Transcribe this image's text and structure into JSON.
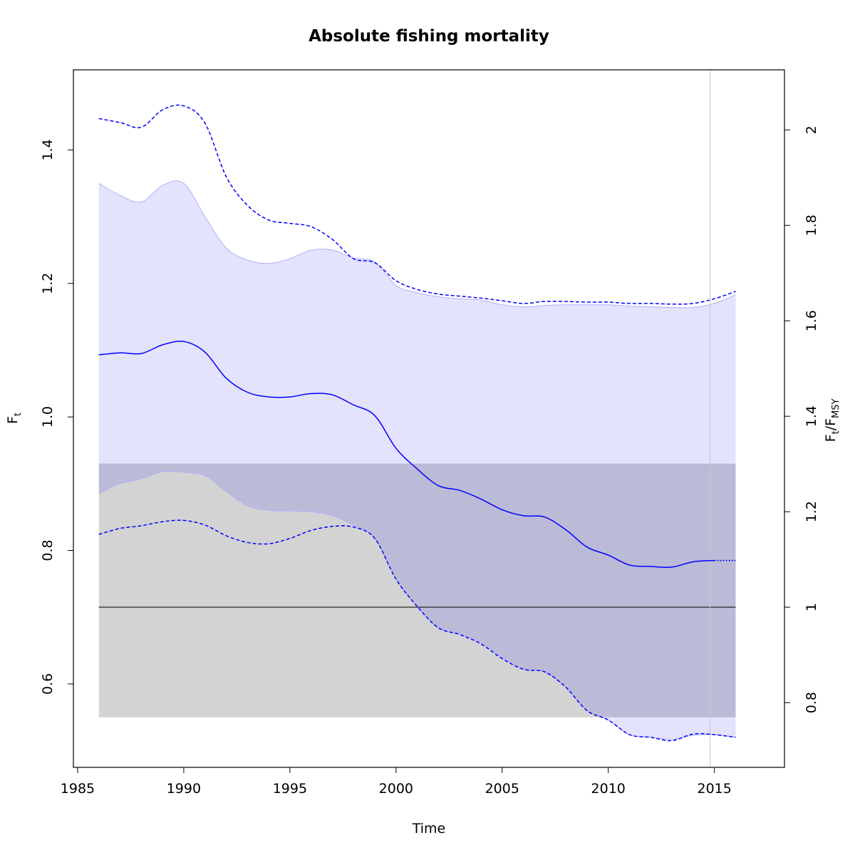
{
  "chart_data": {
    "type": "line",
    "title": "Absolute fishing mortality",
    "xlabel": "Time",
    "ylabel": {
      "main": "F",
      "sub": "t"
    },
    "y2label": {
      "main": "F",
      "sub1": "t",
      "sep": "/F",
      "sub2": "MSY"
    },
    "xlim": [
      1984.8,
      2018.3
    ],
    "ylim": [
      0.475,
      1.52
    ],
    "x_ticks": [
      1985,
      1990,
      1995,
      2000,
      2005,
      2010,
      2015
    ],
    "x_tick_labels": [
      "1985",
      "1990",
      "1995",
      "2000",
      "2005",
      "2010",
      "2015"
    ],
    "y_ticks": [
      0.6,
      0.8,
      1.0,
      1.2,
      1.4
    ],
    "y_tick_labels": [
      "0.6",
      "0.8",
      "1.0",
      "1.2",
      "1.4"
    ],
    "y2_ticks": [
      0.8,
      1,
      1.2,
      1.4,
      1.6,
      1.8,
      2
    ],
    "y2_tick_labels": [
      "0.8",
      "1",
      "1.2",
      "1.4",
      "1.6",
      "1.8",
      "2"
    ],
    "fmsy": 0.715,
    "fmsy_band": {
      "x": [
        1986,
        2016
      ],
      "y": [
        0.55,
        0.93
      ]
    },
    "last_obs_x": 2014.8,
    "x": [
      1986,
      1987,
      1988,
      1989,
      1990,
      1991,
      1992,
      1993,
      1994,
      1995,
      1996,
      1997,
      1998,
      1999,
      2000,
      2001,
      2002,
      2003,
      2004,
      2005,
      2006,
      2007,
      2008,
      2009,
      2010,
      2011,
      2012,
      2013,
      2014,
      2015,
      2016
    ],
    "series": [
      {
        "role": "estimate",
        "values": [
          1.093,
          1.096,
          1.095,
          1.108,
          1.113,
          1.097,
          1.058,
          1.037,
          1.03,
          1.03,
          1.035,
          1.033,
          1.018,
          1.002,
          0.953,
          0.922,
          0.897,
          0.89,
          0.877,
          0.861,
          0.852,
          0.85,
          0.831,
          0.805,
          0.793,
          0.778,
          0.776,
          0.775,
          0.783,
          0.785,
          0.785
        ]
      },
      {
        "role": "ci-upper",
        "values": [
          1.35,
          1.332,
          1.322,
          1.347,
          1.35,
          1.3,
          1.253,
          1.235,
          1.23,
          1.237,
          1.25,
          1.25,
          1.238,
          1.232,
          1.197,
          1.186,
          1.18,
          1.177,
          1.175,
          1.168,
          1.165,
          1.167,
          1.168,
          1.168,
          1.168,
          1.166,
          1.165,
          1.164,
          1.164,
          1.17,
          1.183
        ]
      },
      {
        "role": "ci-lower",
        "values": [
          0.885,
          0.9,
          0.907,
          0.918,
          0.917,
          0.912,
          0.888,
          0.867,
          0.86,
          0.859,
          0.858,
          0.852,
          0.838,
          0.818,
          0.757,
          0.716,
          0.684,
          0.675,
          0.662,
          0.64,
          0.622,
          0.618,
          0.595,
          0.56,
          0.546,
          0.524,
          0.52,
          0.517,
          0.523,
          0.524,
          0.52
        ]
      },
      {
        "role": "pi-upper",
        "values": [
          1.447,
          1.441,
          1.434,
          1.46,
          1.466,
          1.44,
          1.36,
          1.317,
          1.295,
          1.29,
          1.285,
          1.266,
          1.237,
          1.231,
          1.204,
          1.191,
          1.184,
          1.181,
          1.178,
          1.174,
          1.17,
          1.173,
          1.173,
          1.172,
          1.172,
          1.17,
          1.17,
          1.169,
          1.17,
          1.177,
          1.188
        ]
      },
      {
        "role": "pi-lower",
        "values": [
          0.824,
          0.833,
          0.837,
          0.843,
          0.845,
          0.838,
          0.822,
          0.812,
          0.81,
          0.818,
          0.83,
          0.836,
          0.835,
          0.818,
          0.757,
          0.716,
          0.684,
          0.674,
          0.66,
          0.638,
          0.622,
          0.618,
          0.595,
          0.56,
          0.546,
          0.524,
          0.52,
          0.515,
          0.525,
          0.524,
          0.52
        ]
      }
    ],
    "colors": {
      "ci_band": "#e3e3fd",
      "fmsy_band": "#d3d3d3",
      "band_overlap": "#bbbbd8",
      "ci_edge": "#b0b0ff",
      "estimate": "#0000ff",
      "fmsy_line": "#000000",
      "last_obs_line": "#c8c8c8",
      "axes": "#000000"
    },
    "grid": false
  }
}
